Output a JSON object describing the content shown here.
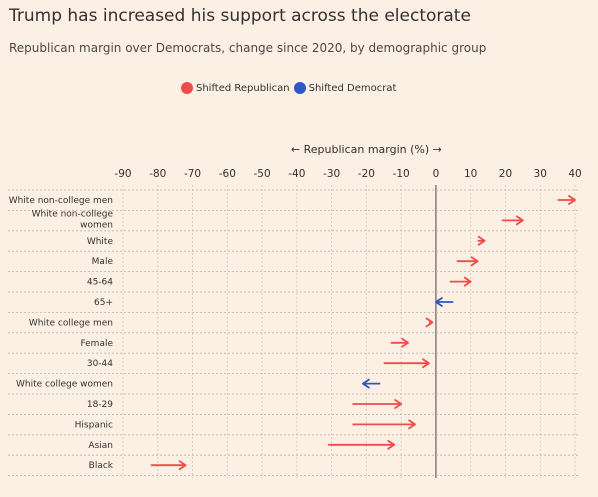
{
  "header": {
    "title": "Trump has increased his support across the electorate",
    "subtitle": "Republican margin over Democrats, change since 2020, by demographic group"
  },
  "legend": {
    "items": [
      {
        "label": "Shifted Republican",
        "color": "#ef4b4b"
      },
      {
        "label": "Shifted Democrat",
        "color": "#2f56c4"
      }
    ]
  },
  "chart_data": {
    "type": "arrow-dot-plot",
    "axis_title": "← Republican margin (%) →",
    "xlim": [
      -90,
      40
    ],
    "xticks": [
      -90,
      -80,
      -70,
      -60,
      -50,
      -40,
      -30,
      -20,
      -10,
      0,
      10,
      20,
      30,
      40
    ],
    "tick_labels": [
      "-90",
      "-80",
      "-70",
      "-60",
      "-50",
      "-40",
      "-30",
      "-20",
      "-10",
      "0",
      "10",
      "20",
      "30",
      "40"
    ],
    "legend_placement": "top",
    "grid": true,
    "groups": [
      {
        "label": "White non-college men",
        "from": 35,
        "to": 40,
        "shift": "Republican"
      },
      {
        "label": "White non-college women",
        "from": 19,
        "to": 25,
        "shift": "Republican"
      },
      {
        "label": "White",
        "from": 12,
        "to": 14,
        "shift": "Republican"
      },
      {
        "label": "Male",
        "from": 6,
        "to": 12,
        "shift": "Republican"
      },
      {
        "label": "45-64",
        "from": 4,
        "to": 10,
        "shift": "Republican"
      },
      {
        "label": "65+",
        "from": 5,
        "to": 0,
        "shift": "Democrat"
      },
      {
        "label": "White college men",
        "from": -2,
        "to": -1,
        "shift": "Republican"
      },
      {
        "label": "Female",
        "from": -13,
        "to": -8,
        "shift": "Republican"
      },
      {
        "label": "30-44",
        "from": -15,
        "to": -2,
        "shift": "Republican"
      },
      {
        "label": "White college women",
        "from": -16,
        "to": -21,
        "shift": "Democrat"
      },
      {
        "label": "18-29",
        "from": -24,
        "to": -10,
        "shift": "Republican"
      },
      {
        "label": "Hispanic",
        "from": -24,
        "to": -6,
        "shift": "Republican"
      },
      {
        "label": "Asian",
        "from": -31,
        "to": -12,
        "shift": "Republican"
      },
      {
        "label": "Black",
        "from": -82,
        "to": -72,
        "shift": "Republican"
      }
    ]
  }
}
